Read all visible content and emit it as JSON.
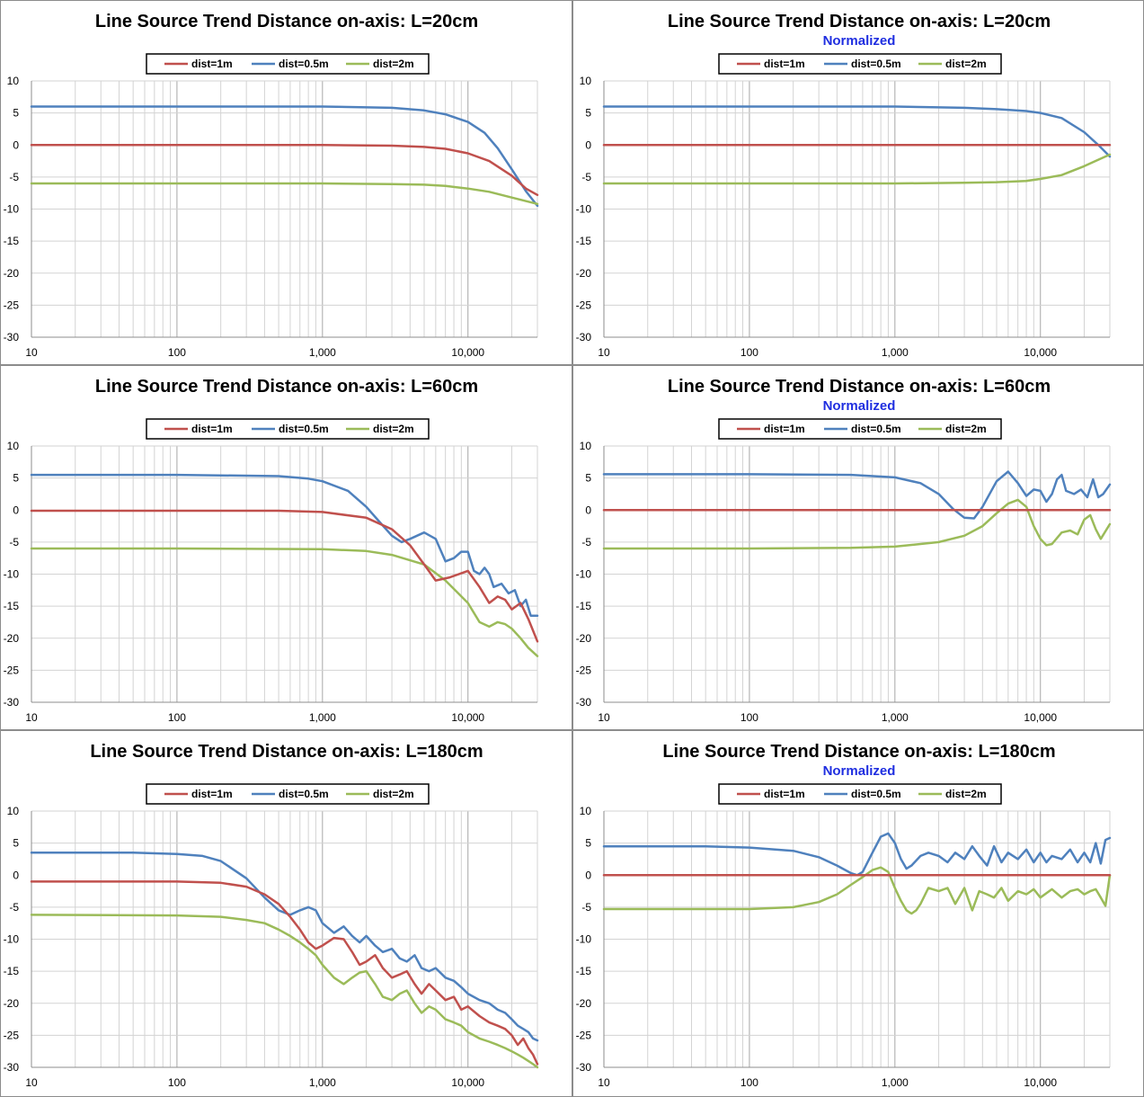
{
  "colors": {
    "dist_1m": "#c0504d",
    "dist_0_5m": "#4f81bd",
    "dist_2m": "#9bbb59",
    "subtitle": "#1f2ee0",
    "grid": "#d3d3d3"
  },
  "chart_data": [
    {
      "type": "line",
      "title": "Line Source Trend Distance on-axis: L=20cm",
      "subtitle": "",
      "xlabel": "",
      "ylabel": "",
      "xscale": "log",
      "xlim": [
        10,
        30000
      ],
      "ylim": [
        -30,
        10
      ],
      "xticks": [
        "10",
        "100",
        "1,000",
        "10,000"
      ],
      "yticks": [
        "10",
        "5",
        "0",
        "-5",
        "-10",
        "-15",
        "-20",
        "-25",
        "-30"
      ],
      "grid": true,
      "legend": "top-center",
      "series": [
        {
          "name": "dist=1m",
          "color": "#c0504d",
          "x": [
            10,
            100,
            1000,
            3000,
            5000,
            7000,
            10000,
            14000,
            20000,
            25000,
            30000
          ],
          "y": [
            0,
            0,
            0,
            -0.1,
            -0.3,
            -0.6,
            -1.3,
            -2.5,
            -4.8,
            -6.8,
            -7.8
          ]
        },
        {
          "name": "dist=0.5m",
          "color": "#4f81bd",
          "x": [
            10,
            100,
            1000,
            3000,
            5000,
            7000,
            10000,
            13000,
            16000,
            20000,
            25000,
            30000
          ],
          "y": [
            6,
            6,
            6,
            5.8,
            5.4,
            4.8,
            3.6,
            1.9,
            -0.5,
            -3.8,
            -7.2,
            -9.5
          ]
        },
        {
          "name": "dist=2m",
          "color": "#9bbb59",
          "x": [
            10,
            100,
            1000,
            3000,
            5000,
            7000,
            10000,
            14000,
            20000,
            30000
          ],
          "y": [
            -6,
            -6,
            -6,
            -6.1,
            -6.2,
            -6.4,
            -6.8,
            -7.3,
            -8.2,
            -9.2
          ]
        }
      ]
    },
    {
      "type": "line",
      "title": "Line Source Trend Distance on-axis: L=20cm",
      "subtitle": "Normalized",
      "xlabel": "",
      "ylabel": "",
      "xscale": "log",
      "xlim": [
        10,
        30000
      ],
      "ylim": [
        -30,
        10
      ],
      "xticks": [
        "10",
        "100",
        "1,000",
        "10,000"
      ],
      "yticks": [
        "10",
        "5",
        "0",
        "-5",
        "-10",
        "-15",
        "-20",
        "-25",
        "-30"
      ],
      "grid": true,
      "legend": "top-center",
      "series": [
        {
          "name": "dist=1m",
          "color": "#c0504d",
          "x": [
            10,
            30000
          ],
          "y": [
            0,
            0
          ]
        },
        {
          "name": "dist=0.5m",
          "color": "#4f81bd",
          "x": [
            10,
            100,
            1000,
            3000,
            5000,
            8000,
            10000,
            14000,
            20000,
            25000,
            30000
          ],
          "y": [
            6,
            6,
            6,
            5.8,
            5.6,
            5.3,
            5,
            4.2,
            2,
            0,
            -1.8
          ]
        },
        {
          "name": "dist=2m",
          "color": "#9bbb59",
          "x": [
            10,
            100,
            1000,
            3000,
            5000,
            8000,
            10000,
            14000,
            20000,
            25000,
            30000
          ],
          "y": [
            -6,
            -6,
            -6,
            -5.9,
            -5.8,
            -5.6,
            -5.3,
            -4.7,
            -3.3,
            -2.3,
            -1.5
          ]
        }
      ]
    },
    {
      "type": "line",
      "title": "Line Source Trend Distance on-axis: L=60cm",
      "subtitle": "",
      "xlabel": "",
      "ylabel": "",
      "xscale": "log",
      "xlim": [
        10,
        30000
      ],
      "ylim": [
        -30,
        10
      ],
      "xticks": [
        "10",
        "100",
        "1,000",
        "10,000"
      ],
      "yticks": [
        "10",
        "5",
        "0",
        "-5",
        "-10",
        "-15",
        "-20",
        "-25",
        "-30"
      ],
      "grid": true,
      "legend": "top-center",
      "series": [
        {
          "name": "dist=1m",
          "color": "#c0504d",
          "x": [
            10,
            100,
            500,
            1000,
            2000,
            3000,
            4000,
            5000,
            6000,
            7500,
            10000,
            12000,
            14000,
            16000,
            18000,
            20000,
            23000,
            26000,
            30000
          ],
          "y": [
            -0.1,
            -0.1,
            -0.1,
            -0.3,
            -1.2,
            -3,
            -5.5,
            -8.5,
            -11,
            -10.5,
            -9.5,
            -12,
            -14.5,
            -13.5,
            -14,
            -15.5,
            -14.5,
            -17,
            -20.5
          ]
        },
        {
          "name": "dist=0.5m",
          "color": "#4f81bd",
          "x": [
            10,
            100,
            500,
            800,
            1000,
            1500,
            2000,
            2500,
            3000,
            3500,
            4000,
            5000,
            6000,
            7000,
            8000,
            9000,
            10000,
            11000,
            12000,
            13000,
            14000,
            15000,
            17000,
            19000,
            21000,
            23000,
            25000,
            27000,
            30000
          ],
          "y": [
            5.5,
            5.5,
            5.3,
            4.9,
            4.5,
            3,
            0.5,
            -2,
            -4,
            -5,
            -4.5,
            -3.5,
            -4.5,
            -8,
            -7.5,
            -6.5,
            -6.5,
            -9.5,
            -10,
            -9,
            -10,
            -12,
            -11.5,
            -13,
            -12.5,
            -15,
            -14,
            -16.5,
            -16.5
          ]
        },
        {
          "name": "dist=2m",
          "color": "#9bbb59",
          "x": [
            10,
            100,
            1000,
            2000,
            3000,
            5000,
            7000,
            10000,
            12000,
            14000,
            16000,
            18000,
            20000,
            23000,
            26000,
            30000
          ],
          "y": [
            -6,
            -6,
            -6.1,
            -6.4,
            -7,
            -8.5,
            -11,
            -14.5,
            -17.5,
            -18.2,
            -17.5,
            -17.8,
            -18.5,
            -20,
            -21.5,
            -22.8
          ]
        }
      ]
    },
    {
      "type": "line",
      "title": "Line Source Trend Distance on-axis: L=60cm",
      "subtitle": "Normalized",
      "xlabel": "",
      "ylabel": "",
      "xscale": "log",
      "xlim": [
        10,
        30000
      ],
      "ylim": [
        -30,
        10
      ],
      "xticks": [
        "10",
        "100",
        "1,000",
        "10,000"
      ],
      "yticks": [
        "10",
        "5",
        "0",
        "-5",
        "-10",
        "-15",
        "-20",
        "-25",
        "-30"
      ],
      "grid": true,
      "legend": "top-center",
      "series": [
        {
          "name": "dist=1m",
          "color": "#c0504d",
          "x": [
            10,
            30000
          ],
          "y": [
            0,
            0
          ]
        },
        {
          "name": "dist=0.5m",
          "color": "#4f81bd",
          "x": [
            10,
            100,
            500,
            1000,
            1500,
            2000,
            2500,
            3000,
            3500,
            4000,
            5000,
            6000,
            7000,
            8000,
            9000,
            10000,
            11000,
            12000,
            13000,
            14000,
            15000,
            17000,
            19000,
            21000,
            23000,
            25000,
            27000,
            30000
          ],
          "y": [
            5.6,
            5.6,
            5.5,
            5.1,
            4.2,
            2.5,
            0.2,
            -1.2,
            -1.3,
            0.5,
            4.5,
            6,
            4.2,
            2.2,
            3.2,
            3,
            1.3,
            2.5,
            4.8,
            5.5,
            3,
            2.5,
            3.2,
            2,
            4.8,
            2,
            2.5,
            4
          ]
        },
        {
          "name": "dist=2m",
          "color": "#9bbb59",
          "x": [
            10,
            100,
            500,
            1000,
            2000,
            3000,
            4000,
            5000,
            6000,
            7000,
            8000,
            9000,
            10000,
            11000,
            12000,
            14000,
            16000,
            18000,
            20000,
            22000,
            24000,
            26000,
            30000
          ],
          "y": [
            -6,
            -6,
            -5.9,
            -5.7,
            -5,
            -4,
            -2.5,
            -0.5,
            1,
            1.6,
            0.5,
            -2.5,
            -4.5,
            -5.5,
            -5.3,
            -3.5,
            -3.2,
            -3.8,
            -1.5,
            -0.8,
            -3,
            -4.5,
            -2.2
          ]
        }
      ]
    },
    {
      "type": "line",
      "title": "Line Source Trend Distance on-axis: L=180cm",
      "subtitle": "",
      "xlabel": "",
      "ylabel": "",
      "xscale": "log",
      "xlim": [
        10,
        30000
      ],
      "ylim": [
        -30,
        10
      ],
      "xticks": [
        "10",
        "100",
        "1,000",
        "10,000"
      ],
      "yticks": [
        "10",
        "5",
        "0",
        "-5",
        "-10",
        "-15",
        "-20",
        "-25",
        "-30"
      ],
      "grid": true,
      "legend": "top-center",
      "series": [
        {
          "name": "dist=1m",
          "color": "#c0504d",
          "x": [
            10,
            100,
            200,
            300,
            400,
            500,
            600,
            700,
            800,
            900,
            1000,
            1200,
            1400,
            1600,
            1800,
            2000,
            2300,
            2600,
            3000,
            3400,
            3800,
            4300,
            4800,
            5400,
            6000,
            7000,
            8000,
            9000,
            10000,
            12000,
            14000,
            16000,
            18000,
            20000,
            22000,
            24000,
            26000,
            28000,
            30000
          ],
          "y": [
            -1,
            -1,
            -1.2,
            -1.8,
            -3,
            -4.5,
            -6.5,
            -8.5,
            -10.5,
            -11.5,
            -11,
            -9.8,
            -10,
            -12,
            -14,
            -13.5,
            -12.5,
            -14.5,
            -16,
            -15.5,
            -15,
            -17,
            -18.5,
            -17,
            -18,
            -19.5,
            -19,
            -21,
            -20.5,
            -22,
            -23,
            -23.5,
            -24,
            -25,
            -26.5,
            -25.5,
            -27,
            -28,
            -29.5
          ]
        },
        {
          "name": "dist=0.5m",
          "color": "#4f81bd",
          "x": [
            10,
            50,
            100,
            150,
            200,
            300,
            400,
            500,
            600,
            700,
            800,
            900,
            1000,
            1200,
            1400,
            1600,
            1800,
            2000,
            2300,
            2600,
            3000,
            3400,
            3800,
            4300,
            4800,
            5400,
            6000,
            7000,
            8000,
            9000,
            10000,
            12000,
            14000,
            16000,
            18000,
            20000,
            22000,
            24000,
            26000,
            28000,
            30000
          ],
          "y": [
            3.5,
            3.5,
            3.3,
            3,
            2.2,
            -0.5,
            -3.5,
            -5.5,
            -6.2,
            -5.5,
            -5,
            -5.5,
            -7.5,
            -9,
            -8,
            -9.5,
            -10.5,
            -9.5,
            -11,
            -12,
            -11.5,
            -13,
            -13.5,
            -12.5,
            -14.5,
            -15,
            -14.5,
            -16,
            -16.5,
            -17.5,
            -18.5,
            -19.5,
            -20,
            -21,
            -21.5,
            -22.5,
            -23.5,
            -24,
            -24.5,
            -25.5,
            -25.8
          ]
        },
        {
          "name": "dist=2m",
          "color": "#9bbb59",
          "x": [
            10,
            100,
            200,
            300,
            400,
            500,
            600,
            700,
            800,
            900,
            1000,
            1200,
            1400,
            1600,
            1800,
            2000,
            2300,
            2600,
            3000,
            3400,
            3800,
            4300,
            4800,
            5400,
            6000,
            7000,
            8000,
            9000,
            10000,
            12000,
            14000,
            16000,
            18000,
            20000,
            22000,
            24000,
            26000,
            28000,
            30000
          ],
          "y": [
            -6.2,
            -6.3,
            -6.5,
            -7,
            -7.5,
            -8.5,
            -9.5,
            -10.5,
            -11.5,
            -12.5,
            -14,
            -16,
            -17,
            -16,
            -15.2,
            -15,
            -17,
            -19,
            -19.5,
            -18.5,
            -18,
            -20,
            -21.5,
            -20.5,
            -21,
            -22.5,
            -23,
            -23.5,
            -24.5,
            -25.5,
            -26,
            -26.5,
            -27,
            -27.5,
            -28,
            -28.5,
            -29,
            -29.5,
            -30
          ]
        }
      ]
    },
    {
      "type": "line",
      "title": "Line Source Trend Distance on-axis: L=180cm",
      "subtitle": "Normalized",
      "xlabel": "",
      "ylabel": "",
      "xscale": "log",
      "xlim": [
        10,
        30000
      ],
      "ylim": [
        -30,
        10
      ],
      "xticks": [
        "10",
        "100",
        "1,000",
        "10,000"
      ],
      "yticks": [
        "10",
        "5",
        "0",
        "-5",
        "-10",
        "-15",
        "-20",
        "-25",
        "-30"
      ],
      "grid": true,
      "legend": "top-center",
      "series": [
        {
          "name": "dist=1m",
          "color": "#c0504d",
          "x": [
            10,
            30000
          ],
          "y": [
            0,
            0
          ]
        },
        {
          "name": "dist=0.5m",
          "color": "#4f81bd",
          "x": [
            10,
            50,
            100,
            200,
            300,
            400,
            500,
            550,
            600,
            700,
            800,
            900,
            1000,
            1100,
            1200,
            1300,
            1500,
            1700,
            2000,
            2300,
            2600,
            3000,
            3400,
            3800,
            4300,
            4800,
            5400,
            6000,
            7000,
            8000,
            9000,
            10000,
            11000,
            12000,
            14000,
            16000,
            18000,
            20000,
            22000,
            24000,
            26000,
            28000,
            30000
          ],
          "y": [
            4.5,
            4.5,
            4.3,
            3.8,
            2.8,
            1.5,
            0.3,
            0,
            0.5,
            3.5,
            6,
            6.5,
            5,
            2.5,
            1,
            1.5,
            3,
            3.5,
            3,
            2,
            3.5,
            2.5,
            4.5,
            3,
            1.5,
            4.5,
            2,
            3.5,
            2.5,
            4,
            2,
            3.5,
            2,
            3,
            2.5,
            4,
            2,
            3.5,
            2,
            5,
            1.8,
            5.5,
            5.8
          ]
        },
        {
          "name": "dist=2m",
          "color": "#9bbb59",
          "x": [
            10,
            100,
            200,
            300,
            400,
            500,
            600,
            700,
            800,
            900,
            1000,
            1100,
            1200,
            1300,
            1400,
            1500,
            1700,
            2000,
            2300,
            2600,
            3000,
            3400,
            3800,
            4300,
            4800,
            5400,
            6000,
            7000,
            8000,
            9000,
            10000,
            12000,
            14000,
            16000,
            18000,
            20000,
            22000,
            24000,
            26000,
            28000,
            30000
          ],
          "y": [
            -5.3,
            -5.3,
            -5,
            -4.2,
            -3,
            -1.5,
            -0.3,
            0.8,
            1.2,
            0.5,
            -2,
            -4,
            -5.5,
            -6,
            -5.5,
            -4.5,
            -2,
            -2.5,
            -2,
            -4.5,
            -2,
            -5.5,
            -2.5,
            -3,
            -3.5,
            -2,
            -4,
            -2.5,
            -3,
            -2.2,
            -3.5,
            -2.2,
            -3.5,
            -2.5,
            -2.2,
            -3,
            -2.5,
            -2.2,
            -3.5,
            -4.8,
            0
          ]
        }
      ]
    }
  ]
}
